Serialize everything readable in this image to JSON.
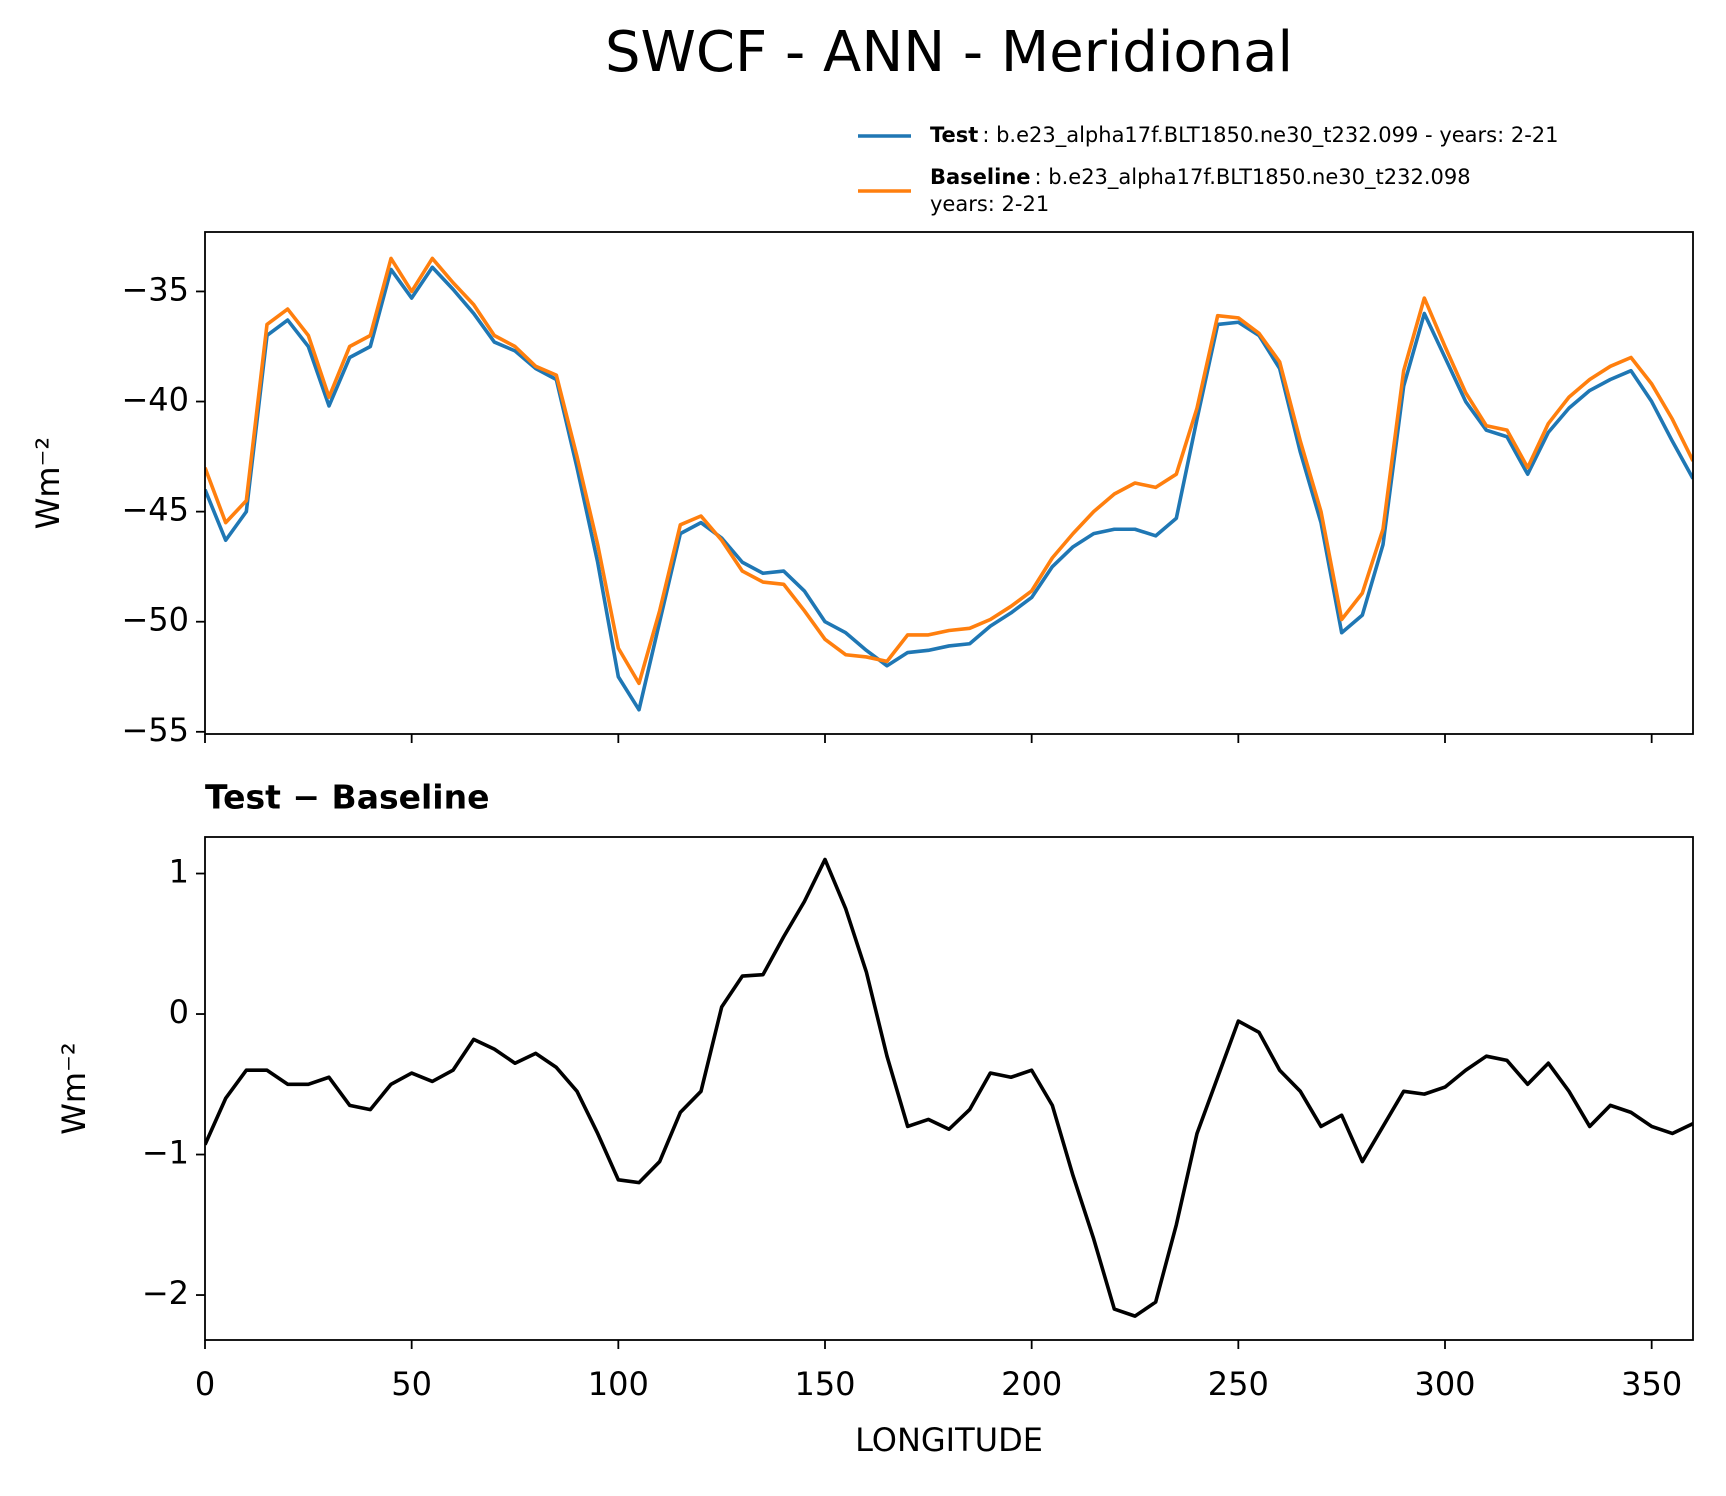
{
  "title": "SWCF - ANN - Meridional",
  "chart_data": [
    {
      "type": "line",
      "ylabel": "Wm⁻²",
      "x": [
        0,
        5,
        10,
        15,
        20,
        25,
        30,
        35,
        40,
        45,
        50,
        55,
        60,
        65,
        70,
        75,
        80,
        85,
        90,
        95,
        100,
        105,
        110,
        115,
        120,
        125,
        130,
        135,
        140,
        145,
        150,
        155,
        160,
        165,
        170,
        175,
        180,
        185,
        190,
        195,
        200,
        205,
        210,
        215,
        220,
        225,
        230,
        235,
        240,
        245,
        250,
        255,
        260,
        265,
        270,
        275,
        280,
        285,
        290,
        295,
        300,
        305,
        310,
        315,
        320,
        325,
        330,
        335,
        340,
        345,
        350,
        355,
        360
      ],
      "series": [
        {
          "name": "Test",
          "description": [
            ": b.e23_alpha17f.BLT1850.ne30_t232.099 - years: 2-21"
          ],
          "color": "#1f77b4",
          "values": [
            -44,
            -46.3,
            -45,
            -37,
            -36.3,
            -37.5,
            -40.2,
            -38,
            -37.5,
            -34,
            -35.3,
            -33.9,
            -34.9,
            -36,
            -37.3,
            -37.7,
            -38.5,
            -39,
            -43,
            -47.3,
            -52.5,
            -54,
            -50,
            -46,
            -45.5,
            -46.2,
            -47.3,
            -47.8,
            -47.7,
            -48.6,
            -50,
            -50.5,
            -51.3,
            -52,
            -51.4,
            -51.3,
            -51.1,
            -51,
            -50.2,
            -49.6,
            -48.9,
            -47.5,
            -46.6,
            -46,
            -45.8,
            -45.8,
            -46.1,
            -45.3,
            -40.8,
            -36.5,
            -36.4,
            -37,
            -38.5,
            -42.3,
            -45.5,
            -50.5,
            -49.7,
            -46.5,
            -39.3,
            -36,
            -38,
            -40,
            -41.3,
            -41.6,
            -43.3,
            -41.4,
            -40.3,
            -39.5,
            -39,
            -38.6,
            -40,
            -41.8,
            -43.5
          ]
        },
        {
          "name": "Baseline",
          "description": [
            ": b.e23_alpha17f.BLT1850.ne30_t232.098",
            "years: 2-21"
          ],
          "color": "#ff7f0e",
          "values": [
            -43,
            -45.5,
            -44.5,
            -36.5,
            -35.8,
            -37,
            -39.8,
            -37.5,
            -37,
            -33.5,
            -35,
            -33.5,
            -34.6,
            -35.6,
            -37,
            -37.5,
            -38.4,
            -38.8,
            -42.5,
            -46.5,
            -51.2,
            -52.8,
            -49.5,
            -45.6,
            -45.2,
            -46.3,
            -47.7,
            -48.2,
            -48.3,
            -49.5,
            -50.8,
            -51.5,
            -51.6,
            -51.8,
            -50.6,
            -50.6,
            -50.4,
            -50.3,
            -49.9,
            -49.3,
            -48.6,
            -47.1,
            -46,
            -45,
            -44.2,
            -43.7,
            -43.9,
            -43.3,
            -40.3,
            -36.1,
            -36.2,
            -36.9,
            -38.2,
            -41.8,
            -45,
            -49.9,
            -48.7,
            -45.8,
            -38.6,
            -35.3,
            -37.5,
            -39.6,
            -41.1,
            -41.3,
            -43,
            -41,
            -39.8,
            -39,
            -38.4,
            -38,
            -39.2,
            -40.8,
            -42.7
          ]
        }
      ],
      "xlim": [
        0,
        360
      ],
      "xticks": [
        0,
        50,
        100,
        150,
        200,
        250,
        300,
        350
      ],
      "ylim": [
        -55.1,
        -32.3
      ],
      "yticks": [
        {
          "value": -55,
          "label": "−55"
        },
        {
          "value": -50,
          "label": "−50"
        },
        {
          "value": -45,
          "label": "−45"
        },
        {
          "value": -40,
          "label": "−40"
        },
        {
          "value": -35,
          "label": "−35"
        }
      ],
      "legend": "top-right"
    },
    {
      "type": "line",
      "title": "Test − Baseline",
      "xlabel": "LONGITUDE",
      "ylabel": "Wm⁻²",
      "x": [
        0,
        5,
        10,
        15,
        20,
        25,
        30,
        35,
        40,
        45,
        50,
        55,
        60,
        65,
        70,
        75,
        80,
        85,
        90,
        95,
        100,
        105,
        110,
        115,
        120,
        125,
        130,
        135,
        140,
        145,
        150,
        155,
        160,
        165,
        170,
        175,
        180,
        185,
        190,
        195,
        200,
        205,
        210,
        215,
        220,
        225,
        230,
        235,
        240,
        245,
        250,
        255,
        260,
        265,
        270,
        275,
        280,
        285,
        290,
        295,
        300,
        305,
        310,
        315,
        320,
        325,
        330,
        335,
        340,
        345,
        350,
        355,
        360
      ],
      "series": [
        {
          "color": "#000000",
          "values": [
            -0.93,
            -0.6,
            -0.4,
            -0.4,
            -0.5,
            -0.5,
            -0.45,
            -0.65,
            -0.68,
            -0.5,
            -0.42,
            -0.48,
            -0.4,
            -0.18,
            -0.25,
            -0.35,
            -0.28,
            -0.38,
            -0.55,
            -0.85,
            -1.18,
            -1.2,
            -1.05,
            -0.7,
            -0.55,
            0.05,
            0.27,
            0.28,
            0.55,
            0.8,
            1.1,
            0.75,
            0.3,
            -0.3,
            -0.8,
            -0.75,
            -0.82,
            -0.68,
            -0.42,
            -0.45,
            -0.4,
            -0.65,
            -1.15,
            -1.6,
            -2.1,
            -2.15,
            -2.05,
            -1.5,
            -0.85,
            -0.45,
            -0.05,
            -0.13,
            -0.4,
            -0.55,
            -0.8,
            -0.72,
            -1.05,
            -0.8,
            -0.55,
            -0.57,
            -0.52,
            -0.4,
            -0.3,
            -0.33,
            -0.5,
            -0.35,
            -0.55,
            -0.8,
            -0.65,
            -0.7,
            -0.8,
            -0.85,
            -0.78
          ]
        }
      ],
      "xlim": [
        0,
        360
      ],
      "xticks": [
        0,
        50,
        100,
        150,
        200,
        250,
        300,
        350
      ],
      "ylim": [
        -2.32,
        1.26
      ],
      "yticks": [
        {
          "value": -2,
          "label": "−2"
        },
        {
          "value": -1,
          "label": "−1"
        },
        0,
        1
      ]
    }
  ]
}
